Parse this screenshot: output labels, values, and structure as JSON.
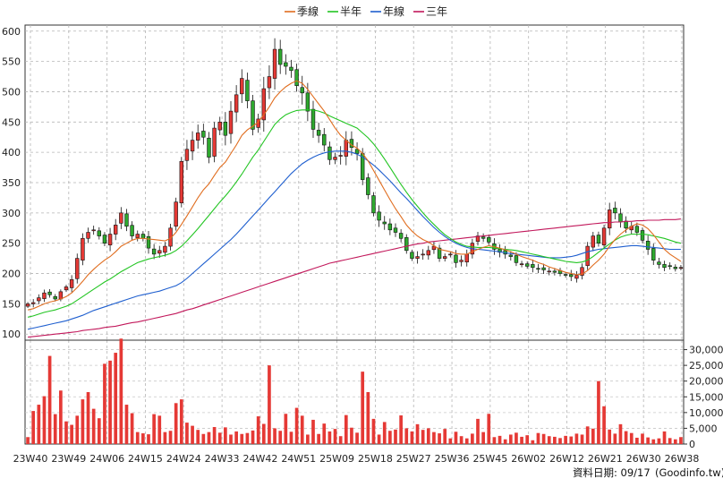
{
  "chart_data": [
    {
      "type": "candlestick",
      "panel": "price",
      "x_ticks": [
        "23W40",
        "23W49",
        "24W06",
        "24W15",
        "24W24",
        "24W33",
        "24W42",
        "24W51",
        "25W09",
        "25W18",
        "25W27",
        "25W36",
        "25W45",
        "26W02",
        "26W12",
        "26W21",
        "26W30",
        "26W38"
      ],
      "y_ticks": [
        100,
        150,
        200,
        250,
        300,
        350,
        400,
        450,
        500,
        550,
        600
      ],
      "ylim": [
        90,
        610
      ],
      "legend": [
        {
          "label": "季線",
          "color": "#e06d1f"
        },
        {
          "label": "半年",
          "color": "#22c522"
        },
        {
          "label": "年線",
          "color": "#1f5fcf"
        },
        {
          "label": "三年",
          "color": "#c2185b"
        }
      ],
      "close": [
        150,
        152,
        160,
        168,
        165,
        158,
        170,
        178,
        190,
        225,
        258,
        268,
        272,
        262,
        250,
        265,
        280,
        300,
        278,
        262,
        265,
        258,
        242,
        232,
        238,
        245,
        275,
        318,
        385,
        405,
        420,
        432,
        425,
        392,
        440,
        450,
        428,
        468,
        495,
        522,
        485,
        438,
        455,
        505,
        525,
        570,
        545,
        542,
        535,
        510,
        498,
        468,
        438,
        428,
        412,
        388,
        392,
        395,
        420,
        408,
        398,
        355,
        330,
        300,
        288,
        282,
        272,
        268,
        258,
        238,
        225,
        228,
        232,
        238,
        245,
        225,
        228,
        232,
        218,
        222,
        232,
        250,
        262,
        258,
        252,
        240,
        235,
        232,
        228,
        218,
        216,
        212,
        210,
        208,
        206,
        204,
        202,
        200,
        197,
        195,
        197,
        210,
        245,
        262,
        250,
        275,
        305,
        300,
        285,
        275,
        278,
        268,
        255,
        240,
        222,
        215,
        210,
        212,
        208,
        210
      ],
      "ma_quarter": [
        140,
        142,
        146,
        150,
        153,
        155,
        158,
        162,
        168,
        177,
        187,
        198,
        207,
        215,
        222,
        228,
        236,
        245,
        250,
        255,
        258,
        258,
        257,
        256,
        255,
        254,
        258,
        268,
        281,
        295,
        310,
        325,
        338,
        348,
        362,
        375,
        384,
        398,
        412,
        428,
        437,
        443,
        450,
        462,
        475,
        490,
        500,
        508,
        514,
        518,
        514,
        504,
        492,
        480,
        468,
        454,
        440,
        428,
        420,
        412,
        407,
        398,
        386,
        370,
        354,
        338,
        322,
        307,
        294,
        280,
        270,
        262,
        256,
        252,
        246,
        240,
        238,
        236,
        233,
        232,
        232,
        236,
        240,
        243,
        246,
        244,
        242,
        239,
        236,
        232,
        228,
        225,
        222,
        218,
        215,
        211,
        208,
        205,
        202,
        200,
        198,
        199,
        205,
        214,
        222,
        232,
        245,
        256,
        265,
        272,
        278,
        282,
        280,
        274,
        264,
        252,
        240,
        232,
        226,
        220
      ],
      "ma_half": [
        128,
        130,
        133,
        136,
        138,
        140,
        143,
        146,
        150,
        156,
        162,
        168,
        174,
        180,
        186,
        191,
        197,
        203,
        208,
        213,
        218,
        221,
        224,
        226,
        228,
        230,
        233,
        238,
        245,
        254,
        264,
        274,
        285,
        296,
        307,
        318,
        328,
        339,
        351,
        364,
        378,
        392,
        404,
        418,
        432,
        446,
        455,
        462,
        466,
        469,
        470,
        470,
        470,
        468,
        465,
        460,
        456,
        452,
        448,
        444,
        440,
        432,
        424,
        414,
        402,
        389,
        375,
        361,
        347,
        334,
        322,
        311,
        300,
        290,
        281,
        272,
        264,
        258,
        252,
        248,
        245,
        244,
        243,
        243,
        243,
        242,
        241,
        240,
        239,
        238,
        236,
        234,
        232,
        230,
        228,
        226,
        224,
        222,
        220,
        219,
        218,
        219,
        222,
        228,
        235,
        242,
        249,
        255,
        260,
        263,
        265,
        265,
        265,
        264,
        262,
        260,
        258,
        255,
        252,
        250
      ],
      "ma_year": [
        108,
        110,
        112,
        114,
        116,
        118,
        120,
        122,
        125,
        128,
        131,
        135,
        139,
        142,
        145,
        148,
        151,
        154,
        157,
        160,
        163,
        165,
        167,
        169,
        171,
        174,
        177,
        180,
        185,
        192,
        200,
        208,
        216,
        224,
        232,
        240,
        248,
        256,
        265,
        275,
        285,
        295,
        305,
        315,
        325,
        335,
        345,
        355,
        365,
        373,
        381,
        387,
        392,
        396,
        399,
        401,
        402,
        402,
        402,
        400,
        397,
        392,
        386,
        379,
        371,
        362,
        353,
        343,
        333,
        324,
        314,
        304,
        294,
        285,
        276,
        268,
        261,
        255,
        250,
        246,
        243,
        241,
        240,
        239,
        238,
        237,
        236,
        234,
        233,
        232,
        231,
        230,
        229,
        228,
        227,
        226,
        226,
        226,
        227,
        228,
        230,
        233,
        236,
        238,
        240,
        241,
        242,
        243,
        244,
        245,
        246,
        246,
        245,
        244,
        243,
        242,
        241,
        240,
        240,
        240
      ],
      "ma_3year": [
        95,
        96,
        97,
        98,
        99,
        100,
        101,
        102,
        103,
        104,
        106,
        107,
        108,
        109,
        111,
        112,
        113,
        115,
        117,
        119,
        120,
        122,
        124,
        126,
        128,
        130,
        132,
        134,
        137,
        140,
        142,
        145,
        148,
        151,
        154,
        157,
        160,
        163,
        166,
        169,
        172,
        175,
        178,
        181,
        184,
        187,
        190,
        193,
        196,
        199,
        202,
        205,
        208,
        211,
        214,
        217,
        219,
        221,
        223,
        225,
        227,
        229,
        231,
        233,
        235,
        237,
        239,
        241,
        243,
        245,
        247,
        249,
        250,
        252,
        253,
        254,
        255,
        256,
        257,
        258,
        259,
        260,
        261,
        262,
        263,
        264,
        265,
        266,
        267,
        268,
        269,
        270,
        271,
        272,
        273,
        274,
        275,
        276,
        277,
        278,
        279,
        280,
        281,
        282,
        283,
        284,
        284,
        285,
        285,
        286,
        286,
        287,
        287,
        288,
        288,
        288,
        289,
        289,
        289,
        290
      ]
    },
    {
      "type": "bar",
      "panel": "volume",
      "y_ticks": [
        0,
        5000,
        10000,
        15000,
        20000,
        25000,
        30000
      ],
      "y_tick_labels": [
        "0",
        "5,000",
        "10,000",
        "15,000",
        "20,000",
        "25,000",
        "30,000"
      ],
      "ylim": [
        0,
        33000
      ],
      "color": "#e53935",
      "values": [
        2200,
        10500,
        12500,
        15200,
        28000,
        9500,
        17000,
        7200,
        6100,
        9000,
        14200,
        16500,
        11200,
        8200,
        25500,
        26500,
        29000,
        33500,
        12500,
        9800,
        3800,
        3400,
        3100,
        9500,
        9000,
        3800,
        4200,
        13000,
        14200,
        6800,
        5800,
        4500,
        3200,
        3800,
        5400,
        3600,
        5300,
        3000,
        4000,
        3200,
        3500,
        4300,
        8800,
        6400,
        25000,
        5000,
        4200,
        9600,
        3900,
        11500,
        9000,
        3000,
        7700,
        3200,
        6500,
        4000,
        4800,
        2500,
        9200,
        5200,
        3600,
        23000,
        16500,
        8000,
        3000,
        7000,
        4200,
        4600,
        9100,
        5000,
        4000,
        6300,
        4500,
        5000,
        3800,
        3400,
        4800,
        1800,
        3900,
        2500,
        1800,
        3300,
        8000,
        3800,
        9600,
        2200,
        2600,
        1500,
        3000,
        3600,
        2300,
        2800,
        1200,
        3500,
        3200,
        2500,
        2300,
        1900,
        2600,
        2400,
        3300,
        3000,
        5600,
        4900,
        20000,
        12000,
        4600,
        3300,
        6300,
        4100,
        3500,
        2000,
        3300,
        2100,
        1500,
        1800,
        4000,
        1900,
        1500,
        2200
      ],
      "footer_label": "資料日期: 09/17",
      "source": "(Goodinfo.tw)"
    }
  ]
}
